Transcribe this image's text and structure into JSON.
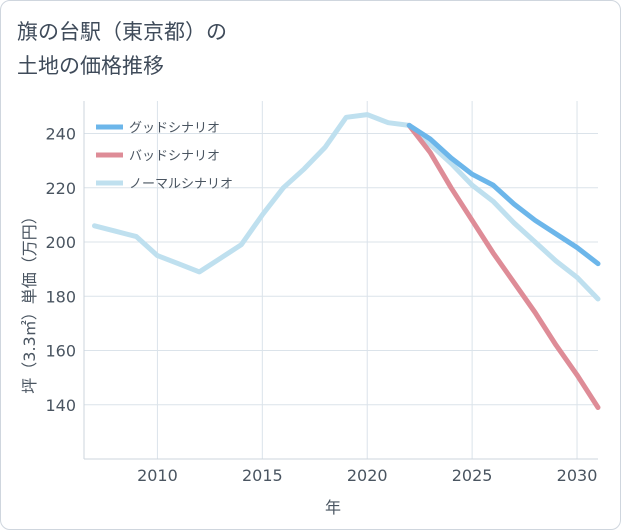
{
  "chart_data": {
    "type": "line",
    "title": "旗の台駅（東京都）の\n土地の価格推移",
    "xlabel": "年",
    "ylabel": "坪（3.3㎡）単価（万円）",
    "xlim": [
      2006.5,
      2031
    ],
    "ylim": [
      120,
      252
    ],
    "x_ticks": [
      2010,
      2015,
      2020,
      2025,
      2030
    ],
    "y_ticks": [
      140,
      160,
      180,
      200,
      220,
      240
    ],
    "grid": true,
    "legend_position": "top-left",
    "series": [
      {
        "name": "グッドシナリオ",
        "color": "#6cb6ea",
        "x": [
          2022,
          2023,
          2024,
          2025,
          2026,
          2027,
          2028,
          2029,
          2030,
          2031
        ],
        "y": [
          243,
          238,
          231,
          225,
          221,
          214,
          208,
          203,
          198,
          192
        ]
      },
      {
        "name": "バッドシナリオ",
        "color": "#de8c97",
        "x": [
          2022,
          2023,
          2024,
          2025,
          2026,
          2027,
          2028,
          2029,
          2030,
          2031
        ],
        "y": [
          243,
          233,
          220,
          208,
          196,
          185,
          174,
          162,
          151,
          139
        ]
      },
      {
        "name": "ノーマルシナリオ",
        "color": "#bfe0ef",
        "x": [
          2007,
          2008,
          2009,
          2010,
          2011,
          2012,
          2013,
          2014,
          2015,
          2016,
          2017,
          2018,
          2019,
          2020,
          2021,
          2022,
          2023,
          2024,
          2025,
          2026,
          2027,
          2028,
          2029,
          2030,
          2031
        ],
        "y": [
          206,
          204,
          202,
          195,
          192,
          189,
          194,
          199,
          210,
          220,
          227,
          235,
          246,
          247,
          244,
          243,
          236,
          229,
          221,
          215,
          207,
          200,
          193,
          187,
          179
        ]
      }
    ]
  }
}
